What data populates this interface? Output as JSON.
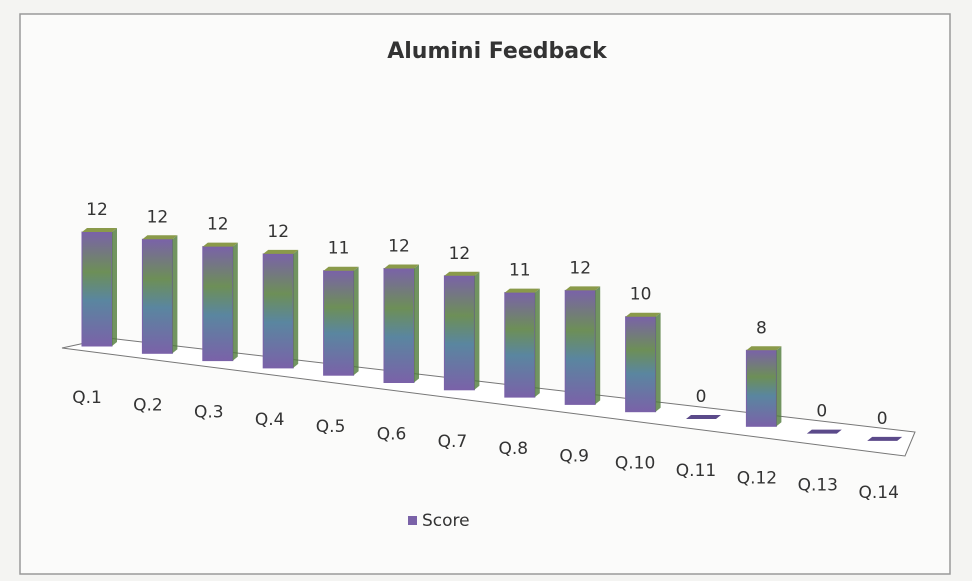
{
  "chart_data": {
    "type": "bar3d",
    "title": "Alumini  Feedback",
    "categories": [
      "Q.1",
      "Q.2",
      "Q.3",
      "Q.4",
      "Q.5",
      "Q.6",
      "Q.7",
      "Q.8",
      "Q.9",
      "Q.10",
      "Q.11",
      "Q.12",
      "Q.13",
      "Q.14"
    ],
    "series": [
      {
        "name": "Score",
        "color": "#7a62a8",
        "values": [
          12,
          12,
          12,
          12,
          11,
          12,
          12,
          11,
          12,
          10,
          0,
          8,
          0,
          0
        ]
      }
    ],
    "legend": "bottom",
    "grid": false
  }
}
